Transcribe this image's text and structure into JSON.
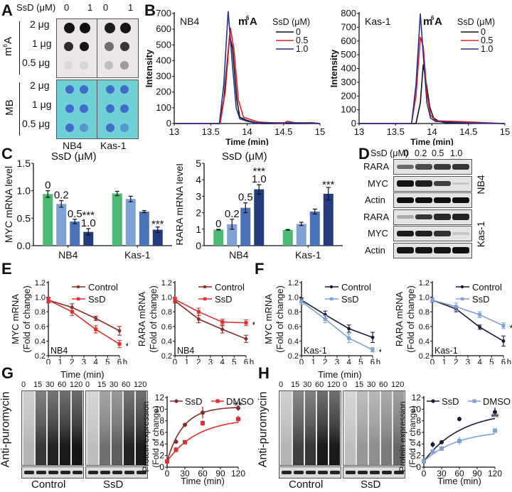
{
  "panels": {
    "A": {
      "label": "A",
      "header": "SsD (μM)",
      "doses": [
        "0",
        "1",
        "0",
        "1"
      ],
      "row_group_labels": [
        "m6A",
        "MB"
      ],
      "amounts": [
        "2 μg",
        "1 μg",
        "0.5 μg"
      ],
      "cell_lines": [
        "NB4",
        "Kas-1"
      ],
      "m6A_intensity": [
        [
          0.95,
          0.98,
          0.92,
          0.95
        ],
        [
          0.85,
          0.95,
          0.55,
          0.8
        ],
        [
          0.08,
          0.1,
          0.2,
          0.35
        ]
      ],
      "mb_color": "#6fd0d6",
      "dot_color": "#3a5bc8"
    },
    "B": {
      "label": "B"
    },
    "C": {
      "label": "C"
    },
    "D": {
      "label": "D",
      "header": "SsD (μM)",
      "doses": [
        "0",
        "0.2",
        "0.5",
        "1.0"
      ],
      "rows": [
        {
          "name": "RARA",
          "group": "NB4",
          "intensity": [
            0.55,
            0.7,
            0.78,
            0.8
          ]
        },
        {
          "name": "MYC",
          "group": "NB4",
          "intensity": [
            0.95,
            0.9,
            0.75,
            0.12
          ]
        },
        {
          "name": "Actin",
          "group": "NB4",
          "intensity": [
            0.98,
            0.98,
            0.98,
            0.98
          ]
        },
        {
          "name": "RARA",
          "group": "Kas-1",
          "intensity": [
            0.25,
            0.8,
            0.85,
            0.88
          ]
        },
        {
          "name": "MYC",
          "group": "Kas-1",
          "intensity": [
            0.92,
            0.9,
            0.82,
            0.12
          ]
        },
        {
          "name": "Actin",
          "group": "Kas-1",
          "intensity": [
            0.95,
            0.95,
            0.95,
            0.98
          ]
        }
      ],
      "group_labels": [
        "NB4",
        "Kas-1"
      ]
    },
    "E": {
      "label": "E"
    },
    "F": {
      "label": "F"
    },
    "G": {
      "label": "G",
      "time_header": "Time (min)",
      "times": [
        "0",
        "15",
        "30",
        "60",
        "120"
      ],
      "ylabel": "Anti-puromycin",
      "groups": [
        "Control",
        "SsD"
      ],
      "lane_darkness": [
        [
          0.1,
          0.75,
          0.85,
          0.9,
          0.92
        ],
        [
          0.05,
          0.45,
          0.55,
          0.85,
          0.88
        ]
      ]
    },
    "H": {
      "label": "H",
      "time_header": "Time (min)",
      "times": [
        "0",
        "15",
        "30",
        "60",
        "120"
      ],
      "ylabel": "Anti-puromycin",
      "groups": [
        "Control",
        "SsD"
      ],
      "lane_darkness": [
        [
          0.1,
          0.7,
          0.75,
          0.9,
          0.9
        ],
        [
          0.05,
          0.25,
          0.3,
          0.4,
          0.5
        ]
      ]
    }
  },
  "chart_data": [
    {
      "id": "B-NB4",
      "type": "line",
      "title": "m6A",
      "annotation": "NB4",
      "legend_title": "SsD (μM)",
      "legend_position": "top-right",
      "xlabel": "Time (min)",
      "ylabel": "Intensity",
      "xlim": [
        13,
        15
      ],
      "ylim": [
        0,
        700
      ],
      "xticks": [
        "13",
        "13.5",
        "14",
        "14.5",
        "15"
      ],
      "yticks": [
        "0",
        "100",
        "200",
        "300",
        "400",
        "500",
        "600",
        "700"
      ],
      "series": [
        {
          "name": "0",
          "color": "#111111",
          "x": [
            13,
            13.62,
            13.68,
            13.76,
            13.8,
            13.86,
            13.9,
            14.0,
            14.1,
            14.2,
            15
          ],
          "y": [
            0,
            0,
            150,
            560,
            480,
            150,
            40,
            20,
            8,
            0,
            0
          ]
        },
        {
          "name": "0.5",
          "color": "#e02020",
          "x": [
            13,
            13.63,
            13.7,
            13.77,
            13.82,
            13.88,
            13.95,
            14.05,
            14.15,
            14.5,
            14.55,
            14.65,
            15
          ],
          "y": [
            0,
            0,
            200,
            610,
            470,
            150,
            40,
            25,
            10,
            0,
            15,
            5,
            0
          ]
        },
        {
          "name": "1.0",
          "color": "#2b2f8f",
          "x": [
            13,
            13.62,
            13.68,
            13.74,
            13.79,
            13.85,
            13.9,
            14.0,
            14.1,
            14.9,
            15
          ],
          "y": [
            0,
            0,
            250,
            715,
            420,
            100,
            30,
            15,
            5,
            5,
            0
          ]
        }
      ]
    },
    {
      "id": "B-Kas1",
      "type": "line",
      "title": "m6A",
      "annotation": "Kas-1",
      "legend_title": "SsD (μM)",
      "legend_position": "top-right",
      "xlabel": "Time (min)",
      "ylabel": "Intensity",
      "xlim": [
        13,
        15
      ],
      "ylim": [
        0,
        800
      ],
      "xticks": [
        "13",
        "13.5",
        "14",
        "14.5",
        "15"
      ],
      "yticks": [
        "0",
        "100",
        "200",
        "300",
        "400",
        "500",
        "600",
        "700",
        "800"
      ],
      "series": [
        {
          "name": "0",
          "color": "#111111",
          "x": [
            13,
            13.78,
            13.84,
            13.88,
            13.92,
            13.97,
            14.02,
            14.1,
            14.2,
            15
          ],
          "y": [
            0,
            0,
            150,
            430,
            300,
            120,
            40,
            15,
            5,
            0
          ]
        },
        {
          "name": "0.5",
          "color": "#e02020",
          "x": [
            13,
            13.72,
            13.78,
            13.84,
            13.88,
            13.93,
            13.98,
            14.05,
            14.35,
            15
          ],
          "y": [
            0,
            0,
            200,
            630,
            560,
            220,
            60,
            20,
            15,
            0
          ]
        },
        {
          "name": "1.0",
          "color": "#2b2f8f",
          "x": [
            13,
            13.72,
            13.78,
            13.84,
            13.88,
            13.93,
            13.98,
            14.05,
            14.5,
            15
          ],
          "y": [
            0,
            0,
            280,
            800,
            500,
            150,
            40,
            15,
            5,
            0
          ]
        }
      ]
    },
    {
      "id": "C-MYC",
      "type": "bar",
      "title": "SsD (μM)",
      "xlabel": "",
      "ylabel": "MYC mRNA level",
      "ylim": [
        0,
        1.5
      ],
      "yticks": [
        "0.0",
        "0.5",
        "1.0",
        "1.5"
      ],
      "categories": [
        "NB4",
        "Kas-1"
      ],
      "series": [
        {
          "name": "0",
          "color": "#4cba74",
          "values": [
            0.94,
            0.95
          ],
          "errors": [
            0.06,
            0.04
          ]
        },
        {
          "name": "0.2",
          "color": "#7fa2d6",
          "values": [
            0.76,
            0.85
          ],
          "errors": [
            0.06,
            0.05
          ]
        },
        {
          "name": "0.5",
          "color": "#4a72b8",
          "values": [
            0.44,
            0.62
          ],
          "errors": [
            0.04,
            0.02
          ]
        },
        {
          "name": "1.0",
          "color": "#233d7a",
          "values": [
            0.25,
            0.29
          ],
          "errors": [
            0.06,
            0.05
          ]
        }
      ],
      "significance": [
        [
          "",
          "",
          "",
          "***"
        ],
        [
          "",
          "",
          "",
          "***"
        ]
      ]
    },
    {
      "id": "C-RARA",
      "type": "bar",
      "title": "SsD (μM)",
      "xlabel": "",
      "ylabel": "RARA mRNA level",
      "ylim": [
        0,
        5
      ],
      "yticks": [
        "0",
        "1",
        "2",
        "3",
        "4",
        "5"
      ],
      "categories": [
        "NB4",
        "Kas-1"
      ],
      "series": [
        {
          "name": "0",
          "color": "#4cba74",
          "values": [
            0.97,
            0.96
          ],
          "errors": [
            0.02,
            0.02
          ]
        },
        {
          "name": "0.2",
          "color": "#7fa2d6",
          "values": [
            1.3,
            1.32
          ],
          "errors": [
            0.3,
            0.1
          ]
        },
        {
          "name": "0.5",
          "color": "#4a72b8",
          "values": [
            2.3,
            2.07
          ],
          "errors": [
            0.3,
            0.15
          ]
        },
        {
          "name": "1.0",
          "color": "#233d7a",
          "values": [
            3.42,
            3.15
          ],
          "errors": [
            0.28,
            0.38
          ]
        }
      ],
      "significance": [
        [
          "",
          "",
          "",
          "***"
        ],
        [
          "",
          "",
          "",
          "***"
        ]
      ]
    },
    {
      "id": "E-MYC",
      "type": "line",
      "annotation": "NB4",
      "xlabel": "",
      "ylabel": "MYC mRNA (Fold of change)",
      "xlim": [
        0,
        6
      ],
      "ylim": [
        0.2,
        1.2
      ],
      "x_unit": "h",
      "xticks": [
        "0",
        "1",
        "2",
        "3",
        "4",
        "5",
        "6"
      ],
      "yticks": [
        "0.2",
        "0.4",
        "0.6",
        "0.8",
        "1.0",
        "1.2"
      ],
      "legend_position": "top-right",
      "series": [
        {
          "name": "Control",
          "color": "#8b2a2a",
          "marker": "circle",
          "x": [
            0,
            2,
            4,
            6
          ],
          "y": [
            0.96,
            0.86,
            0.71,
            0.54
          ],
          "errors": [
            0.03,
            0.05,
            0.03,
            0.06
          ]
        },
        {
          "name": "SsD",
          "color": "#e03030",
          "marker": "square",
          "x": [
            0,
            2,
            4,
            6
          ],
          "y": [
            0.96,
            0.8,
            0.56,
            0.36
          ],
          "errors": [
            0.04,
            0.05,
            0.05,
            0.05
          ]
        }
      ],
      "significance": "**"
    },
    {
      "id": "E-RARA",
      "type": "line",
      "annotation": "NB4",
      "xlabel": "",
      "ylabel": "RARA mRNA (Fold of change)",
      "xlim": [
        0,
        6
      ],
      "ylim": [
        0.2,
        1.2
      ],
      "x_unit": "h",
      "xticks": [
        "0",
        "1",
        "2",
        "3",
        "4",
        "5",
        "6"
      ],
      "yticks": [
        "0.2",
        "0.4",
        "0.6",
        "0.8",
        "1.0",
        "1.2"
      ],
      "legend_position": "top-right",
      "series": [
        {
          "name": "Control",
          "color": "#8b2a2a",
          "marker": "circle",
          "x": [
            0,
            2,
            4,
            6
          ],
          "y": [
            0.95,
            0.7,
            0.56,
            0.43
          ],
          "errors": [
            0.03,
            0.05,
            0.05,
            0.05
          ]
        },
        {
          "name": "SsD",
          "color": "#e03030",
          "marker": "square",
          "x": [
            0,
            2,
            4,
            6
          ],
          "y": [
            0.97,
            0.8,
            0.66,
            0.65
          ],
          "errors": [
            0.03,
            0.05,
            0.04,
            0.04
          ]
        }
      ],
      "significance": "**"
    },
    {
      "id": "F-MYC",
      "type": "line",
      "annotation": "Kas-1",
      "xlabel": "",
      "ylabel": "MYC mRNA (Fold of change)",
      "xlim": [
        0,
        6
      ],
      "ylim": [
        0.2,
        1.2
      ],
      "x_unit": "h",
      "xticks": [
        "0",
        "1",
        "2",
        "3",
        "4",
        "5",
        "6"
      ],
      "yticks": [
        "0.2",
        "0.4",
        "0.6",
        "0.8",
        "1.0",
        "1.2"
      ],
      "legend_position": "top-right",
      "series": [
        {
          "name": "Control",
          "color": "#1c1c3a",
          "marker": "circle",
          "x": [
            0,
            2,
            4,
            6
          ],
          "y": [
            0.96,
            0.76,
            0.57,
            0.45
          ],
          "errors": [
            0.03,
            0.05,
            0.05,
            0.07
          ]
        },
        {
          "name": "SsD",
          "color": "#7fa2d6",
          "marker": "square",
          "x": [
            0,
            2,
            4,
            6
          ],
          "y": [
            0.94,
            0.7,
            0.44,
            0.28
          ],
          "errors": [
            0.04,
            0.05,
            0.06,
            0.03
          ]
        }
      ],
      "significance": "**"
    },
    {
      "id": "F-RARA",
      "type": "line",
      "annotation": "Kas-1",
      "xlabel": "",
      "ylabel": "RARA mRNA (Fold of change)",
      "xlim": [
        0,
        6
      ],
      "ylim": [
        0.2,
        1.2
      ],
      "x_unit": "h",
      "xticks": [
        "0",
        "1",
        "2",
        "3",
        "4",
        "5",
        "6"
      ],
      "yticks": [
        "0.2",
        "0.4",
        "0.6",
        "0.8",
        "1.0",
        "1.2"
      ],
      "legend_position": "top-right",
      "series": [
        {
          "name": "Control",
          "color": "#1c1c3a",
          "marker": "circle",
          "x": [
            0,
            2,
            4,
            6
          ],
          "y": [
            0.96,
            0.84,
            0.59,
            0.4
          ],
          "errors": [
            0.03,
            0.04,
            0.03,
            0.07
          ]
        },
        {
          "name": "SsD",
          "color": "#7fa2d6",
          "marker": "square",
          "x": [
            0,
            2,
            4,
            6
          ],
          "y": [
            0.96,
            0.87,
            0.76,
            0.61
          ],
          "errors": [
            0.03,
            0.05,
            0.04,
            0.04
          ]
        }
      ],
      "significance": "**"
    },
    {
      "id": "G-curve",
      "type": "line",
      "xlabel": "Time (min)",
      "ylabel": "Protein expression (Fold of change)",
      "xlim": [
        0,
        120
      ],
      "ylim": [
        0,
        12
      ],
      "xticks": [
        "0",
        "30",
        "60",
        "90",
        "120"
      ],
      "yticks": [
        "0",
        "2",
        "4",
        "6",
        "8",
        "10",
        "12"
      ],
      "legend_position": "top",
      "series": [
        {
          "name": "SsD",
          "color": "#8b2a2a",
          "marker": "circle",
          "x": [
            0,
            15,
            30,
            60,
            120
          ],
          "y": [
            1.0,
            4.4,
            7.3,
            9.4,
            10.2
          ],
          "errors": [
            0.3,
            0.3,
            0.2,
            1.0,
            0.5
          ]
        },
        {
          "name": "DMSO",
          "color": "#e03030",
          "marker": "square",
          "x": [
            0,
            15,
            30,
            60,
            120
          ],
          "y": [
            1.0,
            3.0,
            4.3,
            7.6,
            8.3
          ],
          "errors": [
            0.3,
            0.5,
            0.4,
            0.5,
            0.6
          ]
        }
      ],
      "significance": "**"
    },
    {
      "id": "H-curve",
      "type": "line",
      "xlabel": "Time (min)",
      "ylabel": "Protein expression (Fold of change)",
      "xlim": [
        0,
        120
      ],
      "ylim": [
        0,
        12
      ],
      "xticks": [
        "0",
        "30",
        "60",
        "90",
        "120"
      ],
      "yticks": [
        "0",
        "2",
        "4",
        "6",
        "8",
        "10",
        "12"
      ],
      "legend_position": "top",
      "series": [
        {
          "name": "SsD",
          "color": "#1c1c3a",
          "marker": "circle",
          "x": [
            0,
            15,
            30,
            60,
            120
          ],
          "y": [
            1.0,
            3.9,
            4.3,
            8.3,
            9.5
          ],
          "errors": [
            0.3,
            0.5,
            0.2,
            0.4,
            0.8
          ]
        },
        {
          "name": "DMSO",
          "color": "#7fa2d6",
          "marker": "square",
          "x": [
            0,
            15,
            30,
            60,
            120
          ],
          "y": [
            1.0,
            2.7,
            3.2,
            4.5,
            6.3
          ],
          "errors": [
            0.3,
            0.3,
            0.4,
            0.7,
            0.3
          ]
        }
      ],
      "significance": "**"
    }
  ]
}
